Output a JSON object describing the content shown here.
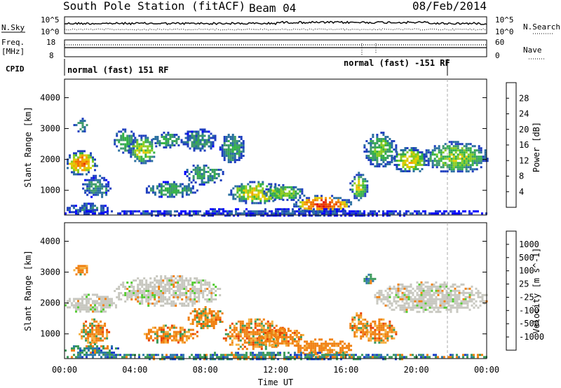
{
  "header": {
    "title": "South Pole Station (fitACF)",
    "beam": "Beam 04",
    "date": "08/Feb/2014"
  },
  "status_panels": {
    "nsky_label": "N.Sky",
    "nsearch_label": "N.Search",
    "freq_label_1": "Freq.",
    "freq_label_2": "[MHz]",
    "nave_label": "Nave",
    "cpid_label": "CPID",
    "noise_ticks_left": [
      "10^5",
      "10^0"
    ],
    "noise_ticks_right": [
      "10^5",
      "10^0"
    ],
    "freq_ticks": [
      "18",
      "8"
    ],
    "nave_ticks": [
      "60",
      "0"
    ],
    "cpid_segments": [
      {
        "label": "normal (fast) 151 RF",
        "start_hour": 0,
        "end_hour": 16.5
      },
      {
        "label": "normal (fast) -151 RF",
        "start_hour": 16.5,
        "end_hour": 21.8
      }
    ]
  },
  "chart_data": [
    {
      "type": "heatmap",
      "title": "Power",
      "ylabel": "Slant Range [km]",
      "xlabel": "",
      "xlim": [
        0,
        24
      ],
      "ylim": [
        200,
        4600
      ],
      "yticks": [
        "1000",
        "2000",
        "3000",
        "4000"
      ],
      "colorbar": {
        "label": "Power [dB]",
        "ticks": [
          "4",
          "8",
          "12",
          "16",
          "20",
          "24",
          "28"
        ],
        "colors": [
          "#0000ff",
          "#1f3fbf",
          "#2a6fa0",
          "#3d9a6a",
          "#33b244",
          "#88cc22",
          "#e0cc00",
          "#f4a000",
          "#f07000",
          "#e83a00",
          "#e00000"
        ]
      },
      "regions": [
        {
          "t0": 0.5,
          "t1": 1.3,
          "r0": 2900,
          "r1": 3350,
          "level": 0.35
        },
        {
          "t0": 0.0,
          "t1": 1.8,
          "r0": 1500,
          "r1": 2300,
          "level": 0.75
        },
        {
          "t0": 1.0,
          "t1": 2.6,
          "r0": 800,
          "r1": 1500,
          "level": 0.3
        },
        {
          "t0": 0.0,
          "t1": 2.5,
          "r0": 250,
          "r1": 600,
          "level": 0.25
        },
        {
          "t0": 2.8,
          "t1": 4.0,
          "r0": 2200,
          "r1": 3000,
          "level": 0.4
        },
        {
          "t0": 3.6,
          "t1": 5.2,
          "r0": 1900,
          "r1": 2800,
          "level": 0.55
        },
        {
          "t0": 5.0,
          "t1": 6.6,
          "r0": 2400,
          "r1": 2900,
          "level": 0.4
        },
        {
          "t0": 6.6,
          "t1": 8.6,
          "r0": 2300,
          "r1": 3000,
          "level": 0.3
        },
        {
          "t0": 4.5,
          "t1": 7.5,
          "r0": 800,
          "r1": 1300,
          "level": 0.35
        },
        {
          "t0": 6.8,
          "t1": 9.0,
          "r0": 1200,
          "r1": 1900,
          "level": 0.35
        },
        {
          "t0": 8.8,
          "t1": 10.2,
          "r0": 1900,
          "r1": 2900,
          "level": 0.35
        },
        {
          "t0": 9.3,
          "t1": 12.5,
          "r0": 600,
          "r1": 1300,
          "level": 0.6
        },
        {
          "t0": 11.3,
          "t1": 13.6,
          "r0": 700,
          "r1": 1200,
          "level": 0.5
        },
        {
          "t0": 13.0,
          "t1": 16.3,
          "r0": 280,
          "r1": 850,
          "level": 0.9
        },
        {
          "t0": 16.2,
          "t1": 17.2,
          "r0": 700,
          "r1": 1600,
          "level": 0.55
        },
        {
          "t0": 17.0,
          "t1": 18.8,
          "r0": 1800,
          "r1": 2900,
          "level": 0.45
        },
        {
          "t0": 18.6,
          "t1": 20.6,
          "r0": 1600,
          "r1": 2400,
          "level": 0.6
        },
        {
          "t0": 20.4,
          "t1": 24.0,
          "r0": 1600,
          "r1": 2600,
          "level": 0.5
        },
        {
          "t0": 0.0,
          "t1": 24.0,
          "r0": 200,
          "r1": 420,
          "level": 0.15
        }
      ]
    },
    {
      "type": "heatmap",
      "title": "Velocity",
      "ylabel": "Slant Range [km]",
      "xlabel": "Time UT",
      "xlim": [
        0,
        24
      ],
      "ylim": [
        200,
        4600
      ],
      "yticks": [
        "1000",
        "2000",
        "3000",
        "4000"
      ],
      "xticks": [
        "00:00",
        "04:00",
        "08:00",
        "12:00",
        "16:00",
        "20:00",
        "00:00"
      ],
      "colorbar": {
        "label": "Velocity [m s^-1]",
        "ticks": [
          "1000",
          "500",
          "100",
          "25",
          "-25",
          "-100",
          "-500",
          "-1000"
        ],
        "colors": [
          "#1a40c8",
          "#2e7aa8",
          "#3a9a5a",
          "#55cc33",
          "#c8c8c0",
          "#f4b040",
          "#f08010",
          "#e84000",
          "#e00000"
        ]
      },
      "regions": [
        {
          "t0": 0.5,
          "t1": 1.3,
          "r0": 2900,
          "r1": 3300,
          "kind": "neg"
        },
        {
          "t0": 0.0,
          "t1": 3.0,
          "r0": 1700,
          "r1": 2300,
          "kind": "gray"
        },
        {
          "t0": 0.8,
          "t1": 2.5,
          "r0": 700,
          "r1": 1500,
          "kind": "neg"
        },
        {
          "t0": 0.0,
          "t1": 3.0,
          "r0": 300,
          "r1": 700,
          "kind": "pos"
        },
        {
          "t0": 2.8,
          "t1": 8.8,
          "r0": 1900,
          "r1": 2900,
          "kind": "gray"
        },
        {
          "t0": 4.5,
          "t1": 7.5,
          "r0": 700,
          "r1": 1300,
          "kind": "neg"
        },
        {
          "t0": 7.0,
          "t1": 9.0,
          "r0": 1200,
          "r1": 1900,
          "kind": "neg"
        },
        {
          "t0": 9.0,
          "t1": 12.5,
          "r0": 500,
          "r1": 1500,
          "kind": "neg"
        },
        {
          "t0": 11.0,
          "t1": 13.6,
          "r0": 600,
          "r1": 1200,
          "kind": "neg"
        },
        {
          "t0": 13.0,
          "t1": 16.3,
          "r0": 280,
          "r1": 850,
          "kind": "orange"
        },
        {
          "t0": 16.2,
          "t1": 17.2,
          "r0": 800,
          "r1": 1700,
          "kind": "neg"
        },
        {
          "t0": 17.0,
          "t1": 17.6,
          "r0": 2600,
          "r1": 2950,
          "kind": "pos"
        },
        {
          "t0": 17.6,
          "t1": 24.0,
          "r0": 1700,
          "r1": 2700,
          "kind": "gray"
        },
        {
          "t0": 17.0,
          "t1": 18.8,
          "r0": 700,
          "r1": 1500,
          "kind": "neg"
        },
        {
          "t0": 0.0,
          "t1": 24.0,
          "r0": 200,
          "r1": 420,
          "kind": "pos"
        }
      ]
    }
  ]
}
